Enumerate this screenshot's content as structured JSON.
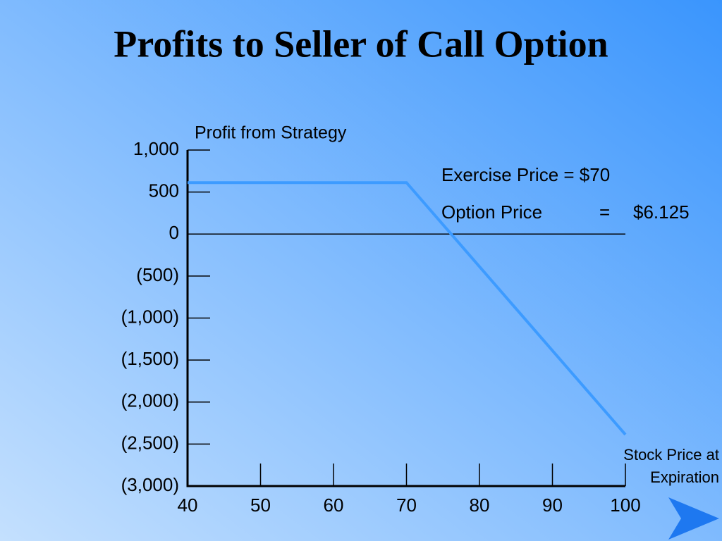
{
  "chart_data": {
    "type": "line",
    "title": "Profits to Seller of Call Option",
    "ylabel": "Profit from Strategy",
    "xlabel": "Stock Price at Expiration",
    "annotations": [
      "Exercise Price = $70",
      "Option Price",
      "=",
      "$6.125"
    ],
    "x": [
      40,
      70,
      100
    ],
    "series": [
      {
        "name": "Profit",
        "color": "#3d9bff",
        "values": [
          612.5,
          612.5,
          -2387.5
        ]
      }
    ],
    "xlim": [
      40,
      100
    ],
    "xticks": [
      40,
      50,
      60,
      70,
      80,
      90,
      100
    ],
    "ylim": [
      -3000,
      1000
    ],
    "yticks": [
      {
        "value": 1000,
        "label": "1,000"
      },
      500,
      0,
      {
        "value": -500,
        "label": "(500)"
      },
      {
        "value": -1000,
        "label": "(1,000)"
      },
      {
        "value": -1500,
        "label": "(1,500)"
      },
      {
        "value": -2000,
        "label": "(2,000)"
      },
      {
        "value": -2500,
        "label": "(2,500)"
      },
      {
        "value": -3000,
        "label": "(3,000)"
      }
    ]
  }
}
